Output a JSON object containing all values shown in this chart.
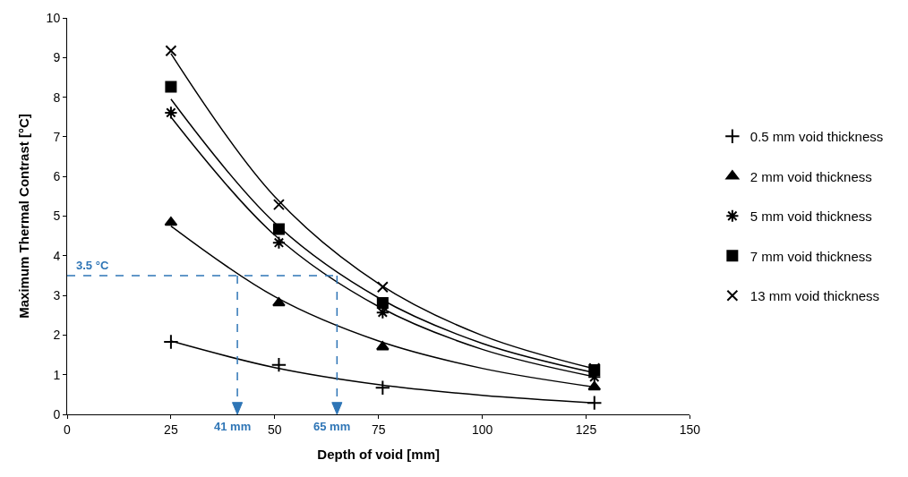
{
  "chart_data": {
    "type": "scatter",
    "xlabel": "Depth of void [mm]",
    "ylabel": "Maximum Thermal Contrast [°C]",
    "xlim": [
      0,
      150
    ],
    "xticks": [
      0,
      25,
      50,
      75,
      100,
      125,
      150
    ],
    "ylim": [
      0,
      10
    ],
    "yticks": [
      0,
      1,
      2,
      3,
      4,
      5,
      6,
      7,
      8,
      9,
      10
    ],
    "legend": "right",
    "series": [
      {
        "name": "0.5 mm void thickness",
        "color": "#000000",
        "marker": "cross",
        "x": [
          25,
          51,
          76,
          127
        ],
        "values": [
          1.83,
          1.25,
          0.67,
          0.29
        ]
      },
      {
        "name": "2 mm void thickness",
        "color": "#000000",
        "marker": "triangle",
        "x": [
          25,
          51,
          76,
          127
        ],
        "values": [
          4.84,
          2.81,
          1.7,
          0.69
        ]
      },
      {
        "name": "5 mm void thickness",
        "color": "#000000",
        "x": [
          25,
          51,
          76,
          127
        ],
        "values": [
          7.61,
          4.33,
          2.57,
          0.94
        ]
      },
      {
        "name": "7 mm void thickness",
        "color": "#000000",
        "marker": "square",
        "x": [
          25,
          51,
          76,
          127
        ],
        "values": [
          8.26,
          4.67,
          2.81,
          1.12
        ]
      },
      {
        "name": "13 mm void thickness",
        "color": "#000000",
        "marker": "x",
        "x": [
          25,
          51,
          76,
          127
        ],
        "values": [
          9.17,
          5.29,
          3.21,
          1.16
        ]
      },
      {
        "type": "line",
        "color": "#000000",
        "x": [
          25,
          50,
          75,
          100,
          127
        ],
        "values": [
          1.85,
          1.18,
          0.75,
          0.48,
          0.29
        ]
      },
      {
        "type": "line",
        "color": "#000000",
        "x": [
          25,
          50,
          75,
          100,
          127
        ],
        "values": [
          4.75,
          2.97,
          1.85,
          1.16,
          0.69
        ]
      },
      {
        "type": "line",
        "color": "#000000",
        "x": [
          25,
          50,
          75,
          100,
          127
        ],
        "values": [
          7.5,
          4.52,
          2.72,
          1.64,
          0.95
        ]
      },
      {
        "type": "line",
        "color": "#000000",
        "x": [
          25,
          50,
          75,
          100,
          127
        ],
        "values": [
          7.95,
          4.83,
          2.94,
          1.79,
          1.05
        ]
      },
      {
        "type": "line",
        "color": "#000000",
        "x": [
          25,
          50,
          75,
          100,
          127
        ],
        "values": [
          9.1,
          5.49,
          3.3,
          1.99,
          1.15
        ]
      }
    ],
    "ref_lines": [
      {
        "axis": "y",
        "value": 3.5,
        "label": "3.5 °C",
        "color": "#2e75b6",
        "line_style": "dashed"
      },
      {
        "axis": "x",
        "value": 41,
        "label": "41 mm",
        "color": "#2e75b6",
        "line_style": "dashed"
      },
      {
        "axis": "x",
        "value": 65,
        "label": "65 mm",
        "color": "#2e75b6",
        "line_style": "dashed"
      }
    ]
  }
}
